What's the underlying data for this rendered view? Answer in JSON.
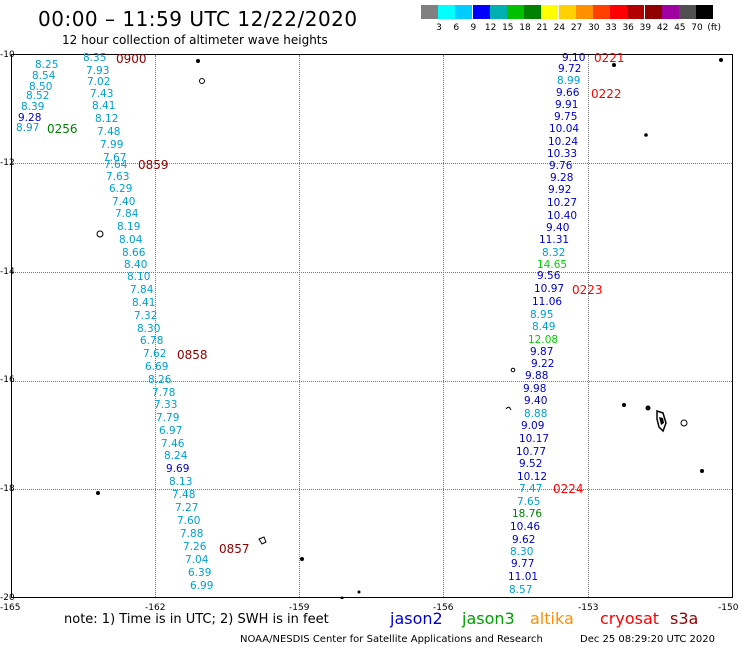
{
  "header": {
    "title": "00:00 – 11:59 UTC 12/22/2020",
    "subtitle": "12 hour collection of altimeter wave heights"
  },
  "legend": {
    "unit": "(ft)",
    "labels": [
      "3",
      "6",
      "9",
      "12",
      "15",
      "18",
      "21",
      "24",
      "27",
      "30",
      "33",
      "36",
      "39",
      "42",
      "45",
      "70"
    ],
    "colors": [
      "#808080",
      "#00ffff",
      "#00ccff",
      "#0000ff",
      "#00b0b0",
      "#00c000",
      "#008000",
      "#ffff00",
      "#ffd000",
      "#ff9000",
      "#ff4000",
      "#ff0000",
      "#b00000",
      "#900000",
      "#a000a0",
      "#505050",
      "#000000"
    ]
  },
  "axes": {
    "y_ticks": [
      "-10",
      "-12",
      "-14",
      "-16",
      "-18",
      "-20"
    ],
    "x_ticks": [
      "-165",
      "-162",
      "-159",
      "-156",
      "-153",
      "-150"
    ]
  },
  "tracks": {
    "left_values": [
      [
        "8.35",
        "#00a0d0"
      ],
      [
        "8.25",
        "#00a0d0"
      ],
      [
        "7.93",
        "#00a0d0"
      ],
      [
        "8.54",
        "#00a0d0"
      ],
      [
        "7.02",
        "#00a0d0"
      ],
      [
        "8.50",
        "#00a0d0"
      ],
      [
        "7.43",
        "#00a0d0"
      ],
      [
        "8.52",
        "#00a0d0"
      ],
      [
        "8.41",
        "#00a0d0"
      ],
      [
        "8.39",
        "#00a0d0"
      ],
      [
        "8.12",
        "#00a0d0"
      ],
      [
        "9.28",
        "#0000cc"
      ],
      [
        "8.97",
        "#00a0d0"
      ],
      [
        "7.48",
        "#00a0d0"
      ],
      [
        "7.99",
        "#00a0d0"
      ],
      [
        "7.67",
        "#00a0d0"
      ],
      [
        "7.64",
        "#00a0d0"
      ],
      [
        "7.63",
        "#00a0d0"
      ],
      [
        "6.29",
        "#00a0d0"
      ],
      [
        "7.40",
        "#00a0d0"
      ],
      [
        "7.84",
        "#00a0d0"
      ],
      [
        "8.19",
        "#00a0d0"
      ],
      [
        "8.04",
        "#00a0d0"
      ],
      [
        "8.66",
        "#00a0d0"
      ],
      [
        "8.40",
        "#00a0d0"
      ],
      [
        "8.10",
        "#00a0d0"
      ],
      [
        "7.84",
        "#00a0d0"
      ],
      [
        "8.41",
        "#00a0d0"
      ],
      [
        "7.32",
        "#00a0d0"
      ],
      [
        "8.30",
        "#00a0d0"
      ],
      [
        "6.78",
        "#00a0d0"
      ],
      [
        "7.62",
        "#00a0d0"
      ],
      [
        "6.69",
        "#00a0d0"
      ],
      [
        "8.26",
        "#00a0d0"
      ],
      [
        "7.78",
        "#00a0d0"
      ],
      [
        "7.33",
        "#00a0d0"
      ],
      [
        "7.79",
        "#00a0d0"
      ],
      [
        "6.97",
        "#00a0d0"
      ],
      [
        "7.46",
        "#00a0d0"
      ],
      [
        "8.24",
        "#00a0d0"
      ],
      [
        "9.69",
        "#0000cc"
      ],
      [
        "8.13",
        "#00a0d0"
      ],
      [
        "7.48",
        "#00a0d0"
      ],
      [
        "7.27",
        "#00a0d0"
      ],
      [
        "7.60",
        "#00a0d0"
      ],
      [
        "7.88",
        "#00a0d0"
      ],
      [
        "7.26",
        "#00a0d0"
      ],
      [
        "7.04",
        "#00a0d0"
      ],
      [
        "6.39",
        "#00a0d0"
      ],
      [
        "6.99",
        "#00a0d0"
      ]
    ],
    "right_values": [
      [
        "9.10",
        "#0000cc"
      ],
      [
        "9.72",
        "#0000cc"
      ],
      [
        "8.99",
        "#00a0d0"
      ],
      [
        "9.66",
        "#0000cc"
      ],
      [
        "9.91",
        "#0000cc"
      ],
      [
        "9.75",
        "#0000cc"
      ],
      [
        "10.04",
        "#0000cc"
      ],
      [
        "10.24",
        "#0000cc"
      ],
      [
        "10.33",
        "#0000cc"
      ],
      [
        "9.76",
        "#0000cc"
      ],
      [
        "9.28",
        "#0000cc"
      ],
      [
        "9.92",
        "#0000cc"
      ],
      [
        "10.27",
        "#0000cc"
      ],
      [
        "10.40",
        "#0000cc"
      ],
      [
        "9.40",
        "#0000cc"
      ],
      [
        "11.31",
        "#0000cc"
      ],
      [
        "8.32",
        "#00a0d0"
      ],
      [
        "14.65",
        "#00d000"
      ],
      [
        "9.56",
        "#0000cc"
      ],
      [
        "10.97",
        "#0000cc"
      ],
      [
        "11.06",
        "#0000cc"
      ],
      [
        "8.95",
        "#00a0d0"
      ],
      [
        "8.49",
        "#00a0d0"
      ],
      [
        "12.08",
        "#00d000"
      ],
      [
        "9.87",
        "#0000cc"
      ],
      [
        "9.22",
        "#0000cc"
      ],
      [
        "9.88",
        "#0000cc"
      ],
      [
        "9.98",
        "#0000cc"
      ],
      [
        "9.40",
        "#0000cc"
      ],
      [
        "8.88",
        "#00a0d0"
      ],
      [
        "9.09",
        "#0000cc"
      ],
      [
        "10.17",
        "#0000cc"
      ],
      [
        "10.77",
        "#0000cc"
      ],
      [
        "9.52",
        "#0000cc"
      ],
      [
        "10.12",
        "#0000cc"
      ],
      [
        "7.47",
        "#00a0d0"
      ],
      [
        "7.65",
        "#00a0d0"
      ],
      [
        "18.76",
        "#008000"
      ],
      [
        "10.46",
        "#0000cc"
      ],
      [
        "9.62",
        "#0000cc"
      ],
      [
        "8.30",
        "#00a0d0"
      ],
      [
        "9.77",
        "#0000cc"
      ],
      [
        "11.01",
        "#0000cc"
      ],
      [
        "8.57",
        "#00a0d0"
      ]
    ],
    "time_labels": [
      [
        "0900",
        "#900000"
      ],
      [
        "0256",
        "#008000"
      ],
      [
        "0859",
        "#900000"
      ],
      [
        "0858",
        "#900000"
      ],
      [
        "0857",
        "#900000"
      ],
      [
        "0221",
        "#ff0000"
      ],
      [
        "0222",
        "#ff0000"
      ],
      [
        "0223",
        "#ff0000"
      ],
      [
        "0224",
        "#ff0000"
      ]
    ]
  },
  "footer": {
    "note": "note: 1) Time is in UTC; 2) SWH is in feet",
    "satellites": [
      [
        "jason2",
        "#0000cc"
      ],
      [
        "jason3",
        "#00a000"
      ],
      [
        "altika",
        "#ff9000"
      ],
      [
        "cryosat",
        "#ff0000"
      ],
      [
        "s3a",
        "#900000"
      ]
    ],
    "credit": "NOAA/NESDIS Center for Satellite Applications and Research",
    "timestamp": "Dec 25 08:29:20 UTC 2020"
  }
}
